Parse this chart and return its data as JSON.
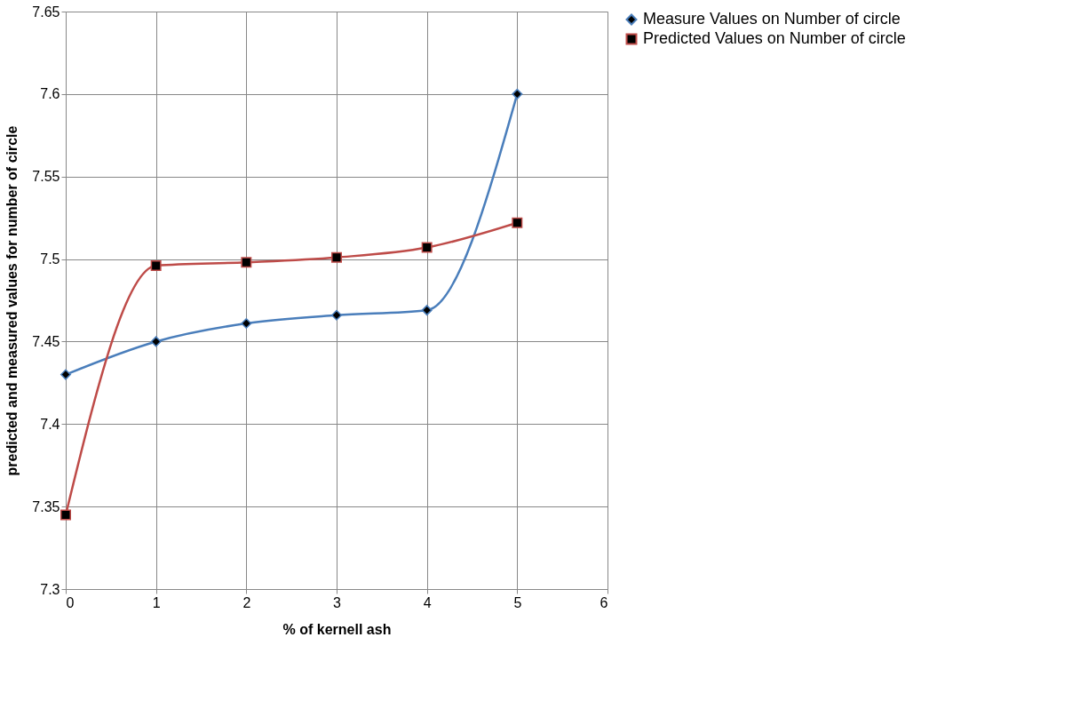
{
  "chart_data": {
    "type": "line",
    "xlabel": "% of kernell ash",
    "ylabel": "predicted and measured values for number of circle",
    "x": [
      0,
      1,
      2,
      3,
      4,
      5
    ],
    "series": [
      {
        "name": "Measure Values  on Number of circle",
        "color": "#4a7ebb",
        "marker": "diamond",
        "values": [
          7.43,
          7.45,
          7.461,
          7.466,
          7.469,
          7.6
        ]
      },
      {
        "name": "Predicted Values  on Number of circle",
        "color": "#be4b48",
        "marker": "square",
        "values": [
          7.345,
          7.496,
          7.498,
          7.501,
          7.507,
          7.522
        ]
      }
    ],
    "xlim": [
      0,
      6
    ],
    "xticks": [
      0,
      1,
      2,
      3,
      4,
      5,
      6
    ],
    "ylim": [
      7.3,
      7.65
    ],
    "yticks": [
      7.3,
      7.35,
      7.4,
      7.45,
      7.5,
      7.55,
      7.6,
      7.65
    ],
    "grid": true,
    "legend": "right",
    "line_style": "solid"
  }
}
